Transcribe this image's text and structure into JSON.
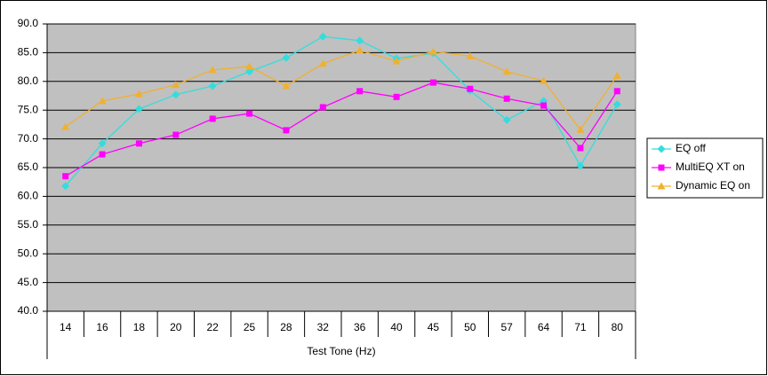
{
  "chart_data": {
    "type": "line",
    "x_label": "Test Tone (Hz)",
    "categories": [
      "14",
      "16",
      "18",
      "20",
      "22",
      "25",
      "28",
      "32",
      "36",
      "40",
      "45",
      "50",
      "57",
      "64",
      "71",
      "80"
    ],
    "series": [
      {
        "name": "EQ off",
        "color": "#33dddd",
        "marker": "diamond",
        "values": [
          61.8,
          69.2,
          75.2,
          77.7,
          79.2,
          81.7,
          84.1,
          87.8,
          87.1,
          84.0,
          84.9,
          78.4,
          73.3,
          76.6,
          65.3,
          76.0
        ]
      },
      {
        "name": "MultiEQ XT on",
        "color": "#ff00ff",
        "marker": "square",
        "values": [
          63.5,
          67.3,
          69.2,
          70.7,
          73.5,
          74.4,
          71.5,
          75.5,
          78.3,
          77.3,
          79.8,
          78.7,
          77.0,
          75.8,
          68.4,
          78.3
        ]
      },
      {
        "name": "Dynamic EQ on",
        "color": "#f0b030",
        "marker": "triangle",
        "values": [
          72.1,
          76.6,
          77.8,
          79.4,
          82.0,
          82.6,
          79.2,
          83.1,
          85.4,
          83.5,
          85.2,
          84.4,
          81.7,
          80.1,
          71.6,
          81.0
        ]
      }
    ],
    "ylim": [
      40,
      90
    ],
    "yticks": [
      {
        "value": 40,
        "label": "40.0"
      },
      {
        "value": 45,
        "label": "45.0"
      },
      {
        "value": 50,
        "label": "50.0"
      },
      {
        "value": 55,
        "label": "55.0"
      },
      {
        "value": 60,
        "label": "60.0"
      },
      {
        "value": 65,
        "label": "65.0"
      },
      {
        "value": 70,
        "label": "70.0"
      },
      {
        "value": 75,
        "label": "75.0"
      },
      {
        "value": 80,
        "label": "80.0"
      },
      {
        "value": 85,
        "label": "85.0"
      },
      {
        "value": 90,
        "label": "90.0"
      }
    ],
    "grid": true,
    "plot_background": "#c0c0c0",
    "legend": "right"
  }
}
